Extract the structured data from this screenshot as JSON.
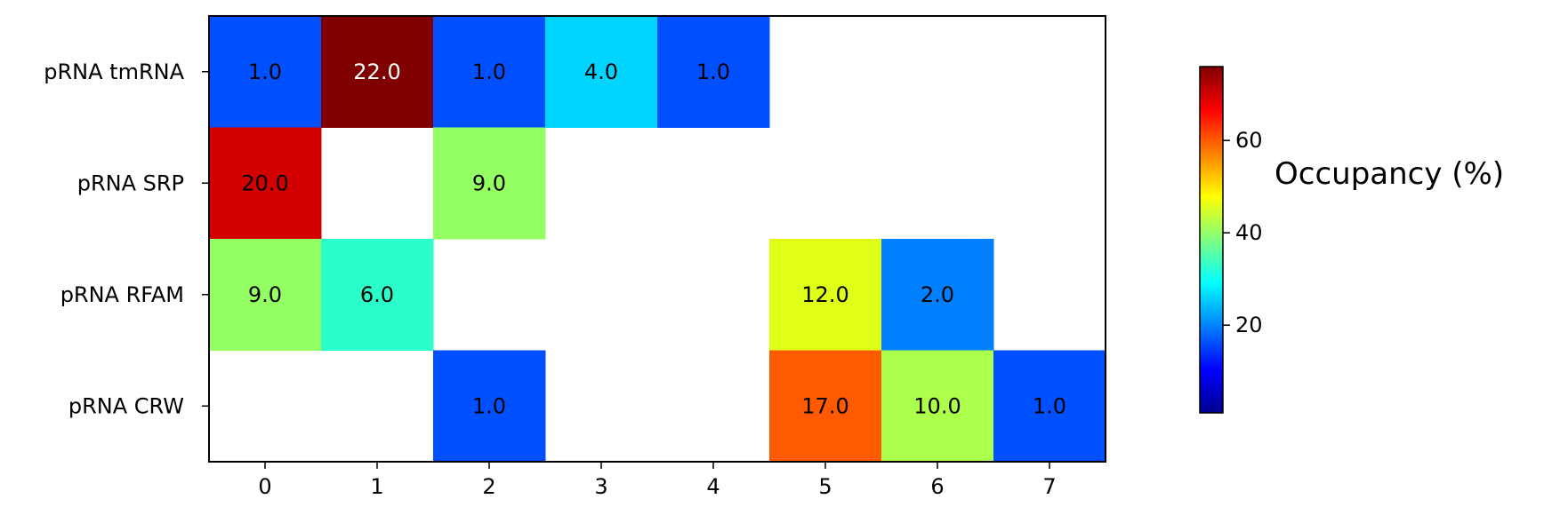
{
  "chart_data": {
    "type": "heatmap",
    "title": "",
    "xlabel": "",
    "ylabel": "",
    "x_categories": [
      "0",
      "1",
      "2",
      "3",
      "4",
      "5",
      "6",
      "7"
    ],
    "y_categories": [
      "pRNA tmRNA",
      "pRNA SRP",
      "pRNA RFAM",
      "pRNA CRW"
    ],
    "values": [
      [
        1.0,
        22.0,
        1.0,
        4.0,
        1.0,
        null,
        null,
        null
      ],
      [
        20.0,
        null,
        9.0,
        null,
        null,
        null,
        null,
        null
      ],
      [
        9.0,
        6.0,
        null,
        null,
        null,
        12.0,
        2.0,
        null
      ],
      [
        null,
        null,
        1.0,
        null,
        null,
        17.0,
        10.0,
        1.0
      ]
    ],
    "value_format": "one decimal",
    "cell_colors": [
      [
        "#0050ff",
        "#800000",
        "#0050ff",
        "#00d4ff",
        "#0050ff",
        null,
        null,
        null
      ],
      [
        "#d40000",
        null,
        "#94ff63",
        null,
        null,
        null,
        null,
        null
      ],
      [
        "#94ff63",
        "#2affca",
        null,
        null,
        null,
        "#e0ff17",
        "#0080ff",
        null
      ],
      [
        null,
        null,
        "#0050ff",
        null,
        null,
        "#ff5a00",
        "#acff4b",
        "#0050ff"
      ]
    ],
    "light_text_cells": [
      [
        0,
        1
      ]
    ],
    "colorbar": {
      "label": "Occupancy (%)",
      "colormap": "jet",
      "range": [
        1,
        76
      ],
      "ticks": [
        20,
        40,
        60
      ],
      "tick_labels": [
        "20",
        "40",
        "60"
      ]
    },
    "empty_cell_color": "#ffffff"
  }
}
